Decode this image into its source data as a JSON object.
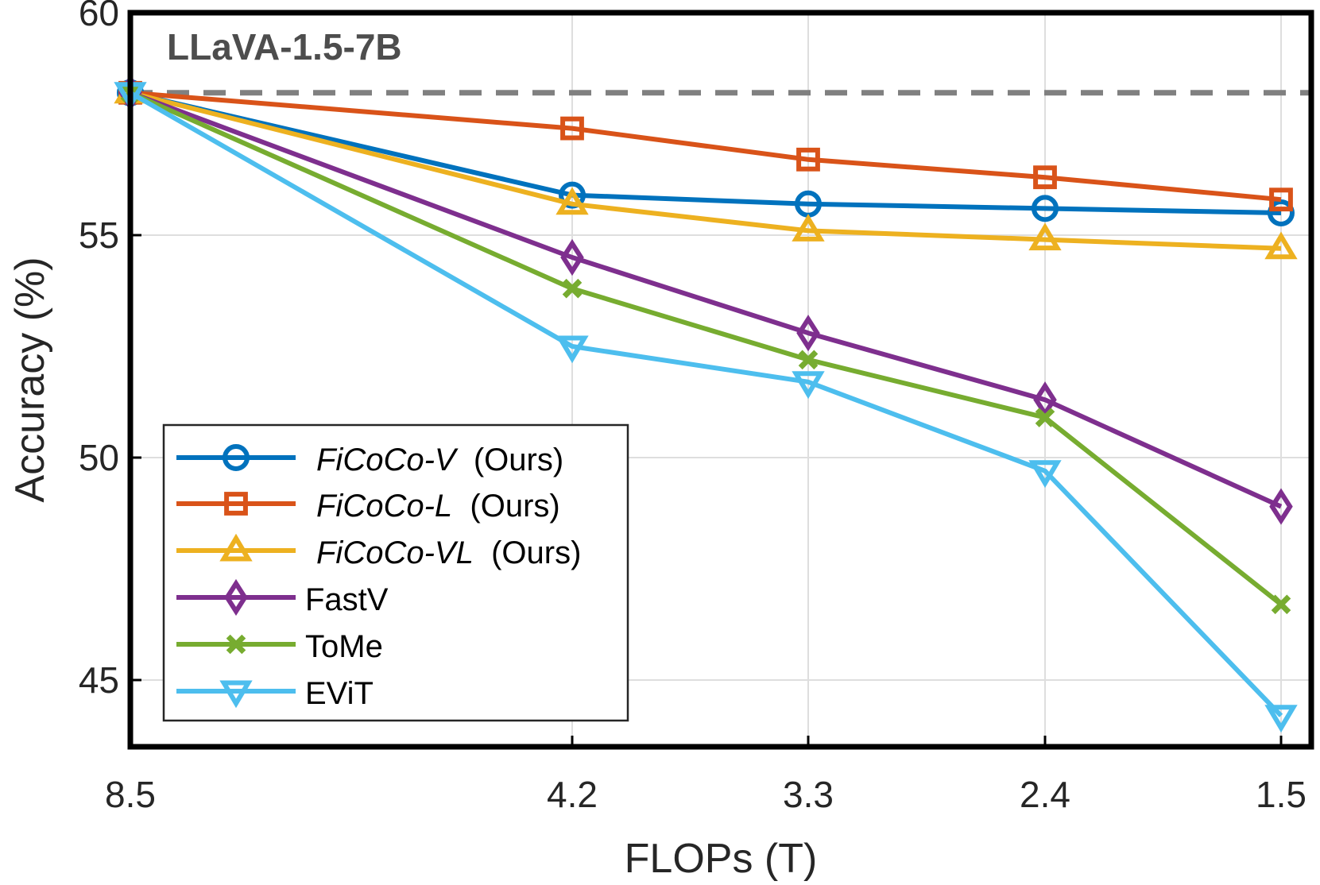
{
  "chart_data": {
    "type": "line",
    "title": "LLaVA-1.5-7B",
    "xlabel": "FLOPs (T)",
    "ylabel": "Accuracy (%)",
    "x_categories": [
      "8.5",
      "4.2",
      "3.3",
      "2.4",
      "1.5"
    ],
    "yticks": [
      "45",
      "50",
      "55",
      "60"
    ],
    "ylim": [
      43.5,
      60
    ],
    "grid": true,
    "legend_position": "lower-left",
    "reference_line": {
      "value": 58.2,
      "style": "dashed",
      "color": "#808080"
    },
    "series": [
      {
        "name": "FiCoCo-V",
        "suffix": "(Ours)",
        "italic": true,
        "color": "#0072BD",
        "marker": "circle",
        "values": [
          58.2,
          55.9,
          55.7,
          55.6,
          55.5
        ]
      },
      {
        "name": "FiCoCo-L",
        "suffix": "(Ours)",
        "italic": true,
        "color": "#D95319",
        "marker": "square",
        "values": [
          58.2,
          57.4,
          56.7,
          56.3,
          55.8
        ]
      },
      {
        "name": "FiCoCo-VL",
        "suffix": "(Ours)",
        "italic": true,
        "color": "#EDB120",
        "marker": "triangle-up",
        "values": [
          58.2,
          55.7,
          55.1,
          54.9,
          54.7
        ]
      },
      {
        "name": "FastV",
        "suffix": "",
        "italic": false,
        "color": "#7E2F8E",
        "marker": "diamond",
        "values": [
          58.2,
          54.5,
          52.8,
          51.3,
          48.9
        ]
      },
      {
        "name": "ToMe",
        "suffix": "",
        "italic": false,
        "color": "#77AC30",
        "marker": "x",
        "values": [
          58.2,
          53.8,
          52.2,
          50.9,
          46.7
        ]
      },
      {
        "name": "EViT",
        "suffix": "",
        "italic": false,
        "color": "#4DBEEE",
        "marker": "triangle-down",
        "values": [
          58.2,
          52.5,
          51.7,
          49.7,
          44.2
        ]
      }
    ]
  }
}
